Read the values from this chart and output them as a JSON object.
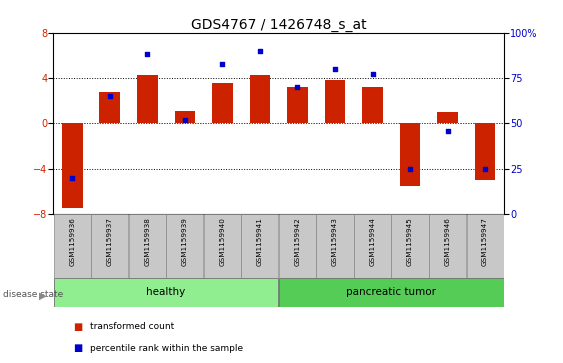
{
  "title": "GDS4767 / 1426748_s_at",
  "samples": [
    "GSM1159936",
    "GSM1159937",
    "GSM1159938",
    "GSM1159939",
    "GSM1159940",
    "GSM1159941",
    "GSM1159942",
    "GSM1159943",
    "GSM1159944",
    "GSM1159945",
    "GSM1159946",
    "GSM1159947"
  ],
  "transformed_count": [
    -7.5,
    2.8,
    4.3,
    1.1,
    3.6,
    4.3,
    3.2,
    3.8,
    3.2,
    -5.5,
    1.0,
    -5.0
  ],
  "percentile_rank": [
    20,
    65,
    88,
    52,
    83,
    90,
    70,
    80,
    77,
    25,
    46,
    25
  ],
  "ylim_left": [
    -8,
    8
  ],
  "ylim_right": [
    0,
    100
  ],
  "yticks_left": [
    -8,
    -4,
    0,
    4,
    8
  ],
  "yticks_right": [
    0,
    25,
    50,
    75,
    100
  ],
  "bar_color": "#cc2200",
  "dot_color": "#0000cc",
  "background_plot": "#ffffff",
  "healthy_color": "#90ee90",
  "tumor_color": "#55cc55",
  "tick_bg_color": "#c8c8c8",
  "legend_red_label": "transformed count",
  "legend_blue_label": "percentile rank within the sample",
  "disease_state_label": "disease state",
  "healthy_label": "healthy",
  "tumor_label": "pancreatic tumor",
  "title_fontsize": 10,
  "axis_fontsize": 7,
  "bar_width": 0.55,
  "n_healthy": 6,
  "n_tumor": 6
}
